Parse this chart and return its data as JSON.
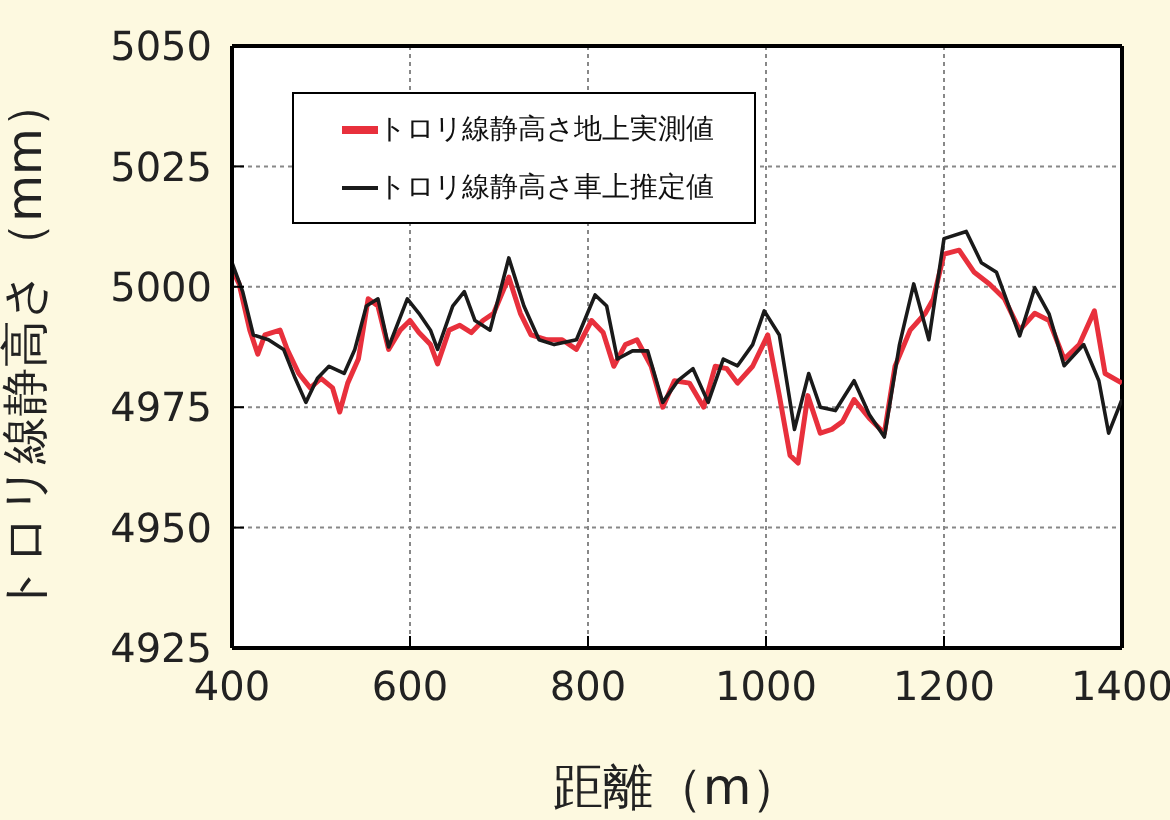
{
  "chart_data": {
    "type": "line",
    "xlabel": "距離（m）",
    "ylabel": "トロリ線静高さ（mm）",
    "xlim": [
      400,
      1400
    ],
    "xticks": [
      400,
      600,
      800,
      1000,
      1200,
      1400
    ],
    "ylim": [
      4925,
      5050
    ],
    "yticks": [
      4925,
      4950,
      4975,
      5000,
      5025,
      5050
    ],
    "grid": true,
    "legend": "top left",
    "marker": "none",
    "line_style": "solid",
    "series": [
      {
        "name": "トロリ線静高さ地上実測値",
        "color": "#e8303c",
        "x": [
          400,
          408,
          420,
          429,
          437,
          454,
          462,
          475,
          488,
          500,
          513,
          521,
          530,
          542,
          553,
          564,
          576,
          589,
          600,
          610,
          623,
          631,
          644,
          656,
          669,
          682,
          694,
          711,
          724,
          736,
          754,
          771,
          787,
          804,
          817,
          829,
          842,
          855,
          871,
          884,
          897,
          914,
          930,
          943,
          956,
          968,
          985,
          1002,
          1015,
          1027,
          1036,
          1047,
          1061,
          1074,
          1086,
          1099,
          1116,
          1133,
          1145,
          1162,
          1179,
          1188,
          1200,
          1217,
          1234,
          1251,
          1268,
          1285,
          1302,
          1318,
          1335,
          1352,
          1369,
          1381,
          1400
        ],
        "values": [
          5003.7,
          5000.6,
          4991,
          4986,
          4990,
          4991,
          4987,
          4982,
          4979,
          4981,
          4979,
          4974,
          4980,
          4985,
          4997.5,
          4996,
          4987,
          4991,
          4993,
          4990.5,
          4988,
          4984,
          4991,
          4992,
          4990.5,
          4993,
          4994.5,
          5002,
          4994.5,
          4990,
          4989,
          4989,
          4987,
          4993,
          4990.5,
          4983.5,
          4988,
          4989,
          4983.5,
          4975,
          4980.5,
          4980,
          4975,
          4983.5,
          4983,
          4980,
          4983.5,
          4990,
          4977.4,
          4965,
          4963.4,
          4977.4,
          4969.6,
          4970.4,
          4972,
          4976.6,
          4972.7,
          4969.6,
          4983.5,
          4991,
          4994.5,
          4997.5,
          5006.8,
          5007.6,
          5003,
          5000.6,
          4997.5,
          4991,
          4994.5,
          4993,
          4985,
          4988,
          4995,
          4982,
          4980
        ]
      },
      {
        "name": "トロリ線静高さ車上推定値",
        "color": "#1a1a1a",
        "x": [
          400,
          412,
          424,
          441,
          458,
          471,
          483,
          496,
          509,
          526,
          538,
          551,
          564,
          576,
          597,
          610,
          623,
          631,
          648,
          661,
          673,
          690,
          711,
          728,
          745,
          762,
          787,
          808,
          821,
          833,
          850,
          867,
          884,
          901,
          918,
          935,
          952,
          968,
          985,
          998,
          1015,
          1032,
          1048,
          1061,
          1078,
          1099,
          1116,
          1133,
          1150,
          1166,
          1183,
          1200,
          1225,
          1242,
          1259,
          1285,
          1302,
          1318,
          1335,
          1357,
          1374,
          1385,
          1395,
          1400
        ],
        "values": [
          5005,
          4999,
          4990,
          4989,
          4987,
          4981,
          4976,
          4981,
          4983.5,
          4982,
          4987,
          4996,
          4997.5,
          4987.5,
          4997.5,
          4994.5,
          4991,
          4987,
          4996,
          4999,
          4993,
          4991,
          5006,
          4996,
          4989,
          4988,
          4989,
          4998.3,
          4996,
          4985,
          4986.7,
          4986.7,
          4976,
          4980.5,
          4983,
          4976,
          4985,
          4983.6,
          4988,
          4995,
          4990,
          4970.4,
          4982,
          4975,
          4974.3,
          4980.5,
          4973.5,
          4968.8,
          4988,
          5000.6,
          4989,
          5010,
          5011.5,
          5005,
          5003,
          4989.8,
          4999.8,
          4994.4,
          4983.6,
          4988,
          4980.5,
          4969.6,
          4974.3,
          4976.6
        ]
      }
    ]
  }
}
